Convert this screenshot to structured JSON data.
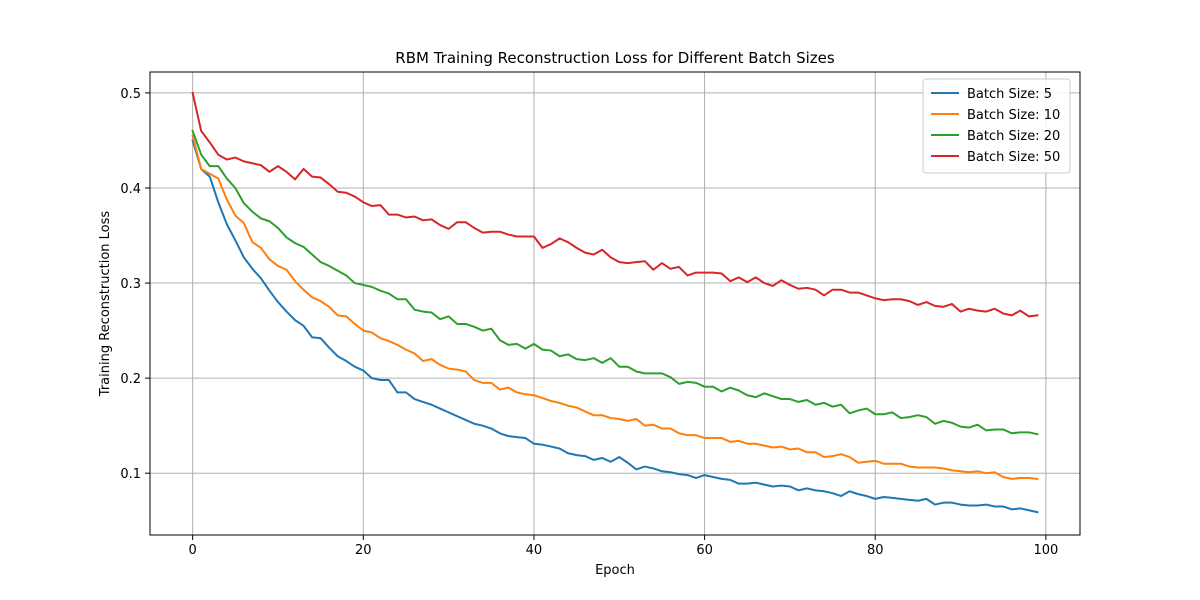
{
  "chart_data": {
    "type": "line",
    "title": "RBM Training Reconstruction Loss for Different Batch Sizes",
    "xlabel": "Epoch",
    "ylabel": "Training Reconstruction Loss",
    "xlim": [
      -5,
      104
    ],
    "ylim": [
      0.035,
      0.522
    ],
    "xticks": [
      0,
      20,
      40,
      60,
      80,
      100
    ],
    "xtick_labels": [
      "0",
      "20",
      "40",
      "60",
      "80",
      "100"
    ],
    "yticks": [
      0.1,
      0.2,
      0.3,
      0.4,
      0.5
    ],
    "ytick_labels": [
      "0.1",
      "0.2",
      "0.3",
      "0.4",
      "0.5"
    ],
    "grid": true,
    "legend_position": "top-right",
    "x": [
      0,
      1,
      2,
      3,
      4,
      5,
      6,
      7,
      8,
      9,
      10,
      11,
      12,
      13,
      14,
      15,
      16,
      17,
      18,
      19,
      20,
      21,
      22,
      23,
      24,
      25,
      26,
      27,
      28,
      29,
      30,
      31,
      32,
      33,
      34,
      35,
      36,
      37,
      38,
      39,
      40,
      41,
      42,
      43,
      44,
      45,
      46,
      47,
      48,
      49,
      50,
      51,
      52,
      53,
      54,
      55,
      56,
      57,
      58,
      59,
      60,
      61,
      62,
      63,
      64,
      65,
      66,
      67,
      68,
      69,
      70,
      71,
      72,
      73,
      74,
      75,
      76,
      77,
      78,
      79,
      80,
      81,
      82,
      83,
      84,
      85,
      86,
      87,
      88,
      89,
      90,
      91,
      92,
      93,
      94,
      95,
      96,
      97,
      98,
      99
    ],
    "series": [
      {
        "name": "Batch Size: 5",
        "color": "#1f77b4",
        "values": [
          0.45,
          0.42,
          0.412,
          0.385,
          0.362,
          0.345,
          0.327,
          0.315,
          0.305,
          0.292,
          0.28,
          0.27,
          0.261,
          0.255,
          0.243,
          0.242,
          0.232,
          0.223,
          0.218,
          0.212,
          0.208,
          0.2,
          0.198,
          0.198,
          0.185,
          0.185,
          0.178,
          0.175,
          0.172,
          0.168,
          0.164,
          0.16,
          0.156,
          0.152,
          0.15,
          0.147,
          0.142,
          0.139,
          0.138,
          0.137,
          0.131,
          0.13,
          0.128,
          0.126,
          0.121,
          0.119,
          0.118,
          0.114,
          0.116,
          0.112,
          0.117,
          0.111,
          0.104,
          0.107,
          0.105,
          0.102,
          0.101,
          0.099,
          0.098,
          0.095,
          0.098,
          0.096,
          0.094,
          0.093,
          0.089,
          0.089,
          0.09,
          0.088,
          0.086,
          0.087,
          0.086,
          0.082,
          0.084,
          0.082,
          0.081,
          0.079,
          0.076,
          0.081,
          0.078,
          0.076,
          0.073,
          0.075,
          0.074,
          0.073,
          0.072,
          0.071,
          0.073,
          0.067,
          0.069,
          0.069,
          0.067,
          0.066,
          0.066,
          0.067,
          0.065,
          0.065,
          0.062,
          0.063,
          0.061,
          0.059
        ]
      },
      {
        "name": "Batch Size: 10",
        "color": "#ff7f0e",
        "values": [
          0.455,
          0.42,
          0.415,
          0.41,
          0.388,
          0.371,
          0.363,
          0.343,
          0.337,
          0.325,
          0.318,
          0.314,
          0.302,
          0.293,
          0.285,
          0.281,
          0.275,
          0.266,
          0.265,
          0.257,
          0.25,
          0.248,
          0.242,
          0.239,
          0.235,
          0.23,
          0.226,
          0.218,
          0.22,
          0.214,
          0.21,
          0.209,
          0.207,
          0.198,
          0.195,
          0.195,
          0.188,
          0.19,
          0.185,
          0.183,
          0.182,
          0.179,
          0.176,
          0.174,
          0.171,
          0.169,
          0.165,
          0.161,
          0.161,
          0.158,
          0.157,
          0.155,
          0.157,
          0.15,
          0.151,
          0.147,
          0.147,
          0.142,
          0.14,
          0.14,
          0.137,
          0.137,
          0.137,
          0.133,
          0.134,
          0.131,
          0.131,
          0.129,
          0.127,
          0.128,
          0.125,
          0.126,
          0.122,
          0.122,
          0.117,
          0.118,
          0.12,
          0.117,
          0.111,
          0.112,
          0.113,
          0.11,
          0.11,
          0.11,
          0.107,
          0.106,
          0.106,
          0.106,
          0.105,
          0.103,
          0.102,
          0.101,
          0.102,
          0.1,
          0.101,
          0.096,
          0.094,
          0.095,
          0.095,
          0.094
        ]
      },
      {
        "name": "Batch Size: 20",
        "color": "#2ca02c",
        "values": [
          0.46,
          0.435,
          0.423,
          0.423,
          0.41,
          0.4,
          0.384,
          0.375,
          0.368,
          0.365,
          0.358,
          0.348,
          0.342,
          0.338,
          0.33,
          0.322,
          0.318,
          0.313,
          0.308,
          0.3,
          0.298,
          0.296,
          0.292,
          0.289,
          0.283,
          0.283,
          0.272,
          0.27,
          0.269,
          0.262,
          0.265,
          0.257,
          0.257,
          0.254,
          0.25,
          0.252,
          0.24,
          0.235,
          0.236,
          0.231,
          0.236,
          0.23,
          0.229,
          0.223,
          0.225,
          0.22,
          0.219,
          0.221,
          0.216,
          0.221,
          0.212,
          0.212,
          0.207,
          0.205,
          0.205,
          0.205,
          0.201,
          0.194,
          0.196,
          0.195,
          0.191,
          0.191,
          0.186,
          0.19,
          0.187,
          0.182,
          0.18,
          0.184,
          0.181,
          0.178,
          0.178,
          0.175,
          0.177,
          0.172,
          0.174,
          0.17,
          0.172,
          0.163,
          0.166,
          0.168,
          0.162,
          0.162,
          0.164,
          0.158,
          0.159,
          0.161,
          0.159,
          0.152,
          0.155,
          0.153,
          0.149,
          0.148,
          0.151,
          0.145,
          0.146,
          0.146,
          0.142,
          0.143,
          0.143,
          0.141
        ]
      },
      {
        "name": "Batch Size: 50",
        "color": "#d62728",
        "values": [
          0.5,
          0.46,
          0.448,
          0.435,
          0.43,
          0.432,
          0.428,
          0.426,
          0.424,
          0.417,
          0.423,
          0.417,
          0.409,
          0.42,
          0.412,
          0.411,
          0.404,
          0.396,
          0.395,
          0.391,
          0.385,
          0.381,
          0.382,
          0.372,
          0.372,
          0.369,
          0.37,
          0.366,
          0.367,
          0.361,
          0.357,
          0.364,
          0.364,
          0.358,
          0.353,
          0.354,
          0.354,
          0.351,
          0.349,
          0.349,
          0.349,
          0.337,
          0.341,
          0.347,
          0.343,
          0.337,
          0.332,
          0.33,
          0.335,
          0.327,
          0.322,
          0.321,
          0.322,
          0.323,
          0.314,
          0.321,
          0.315,
          0.317,
          0.308,
          0.311,
          0.311,
          0.311,
          0.31,
          0.302,
          0.306,
          0.301,
          0.306,
          0.3,
          0.297,
          0.303,
          0.298,
          0.294,
          0.295,
          0.293,
          0.287,
          0.293,
          0.293,
          0.29,
          0.29,
          0.287,
          0.284,
          0.282,
          0.283,
          0.283,
          0.281,
          0.277,
          0.28,
          0.276,
          0.275,
          0.278,
          0.27,
          0.273,
          0.271,
          0.27,
          0.273,
          0.268,
          0.266,
          0.271,
          0.265,
          0.266
        ]
      }
    ]
  }
}
